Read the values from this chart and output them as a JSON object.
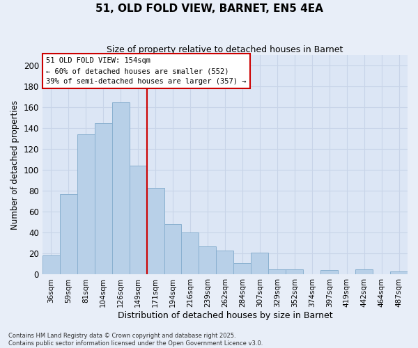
{
  "title": "51, OLD FOLD VIEW, BARNET, EN5 4EA",
  "subtitle": "Size of property relative to detached houses in Barnet",
  "xlabel": "Distribution of detached houses by size in Barnet",
  "ylabel": "Number of detached properties",
  "bar_labels": [
    "36sqm",
    "59sqm",
    "81sqm",
    "104sqm",
    "126sqm",
    "149sqm",
    "171sqm",
    "194sqm",
    "216sqm",
    "239sqm",
    "262sqm",
    "284sqm",
    "307sqm",
    "329sqm",
    "352sqm",
    "374sqm",
    "397sqm",
    "419sqm",
    "442sqm",
    "464sqm",
    "487sqm"
  ],
  "bar_values": [
    18,
    77,
    134,
    145,
    165,
    104,
    83,
    48,
    40,
    27,
    23,
    11,
    21,
    5,
    5,
    0,
    4,
    0,
    5,
    0,
    3
  ],
  "bar_color": "#b8d0e8",
  "bar_edge_color": "#8ab0d0",
  "vline_x": 5.5,
  "vline_color": "#cc0000",
  "ylim": [
    0,
    210
  ],
  "yticks": [
    0,
    20,
    40,
    60,
    80,
    100,
    120,
    140,
    160,
    180,
    200
  ],
  "annotation_text_line1": "51 OLD FOLD VIEW: 154sqm",
  "annotation_text_line2": "← 60% of detached houses are smaller (552)",
  "annotation_text_line3": "39% of semi-detached houses are larger (357) →",
  "footer_line1": "Contains HM Land Registry data © Crown copyright and database right 2025.",
  "footer_line2": "Contains public sector information licensed under the Open Government Licence v3.0.",
  "bg_color": "#e8eef8",
  "plot_bg_color": "#dce6f5",
  "grid_color": "#c8d4e8"
}
